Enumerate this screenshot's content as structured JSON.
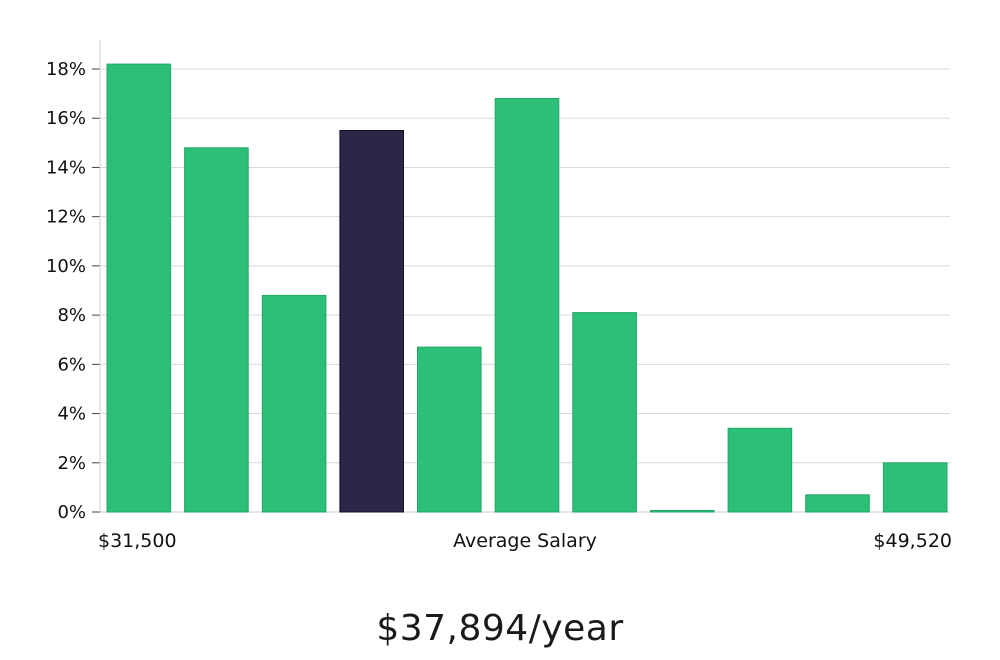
{
  "chart_data": {
    "type": "bar",
    "values": [
      18.2,
      14.8,
      8.8,
      15.5,
      6.7,
      16.8,
      8.1,
      0.05,
      3.4,
      0.7,
      2.0
    ],
    "highlight_index": 3,
    "ylim": [
      0,
      19
    ],
    "yticks": [
      0,
      2,
      4,
      6,
      8,
      10,
      12,
      14,
      16,
      18
    ],
    "ytick_suffix": "%",
    "xlabel": "Average Salary",
    "x_min_label": "$31,500",
    "x_max_label": "$49,520",
    "grid": true,
    "colors": {
      "bar": "#2bbf78",
      "highlight": "#2a2747",
      "grid": "#d9d9d9",
      "axis": "#cccccc"
    }
  },
  "summary": {
    "salary_text": "$37,894/year"
  }
}
